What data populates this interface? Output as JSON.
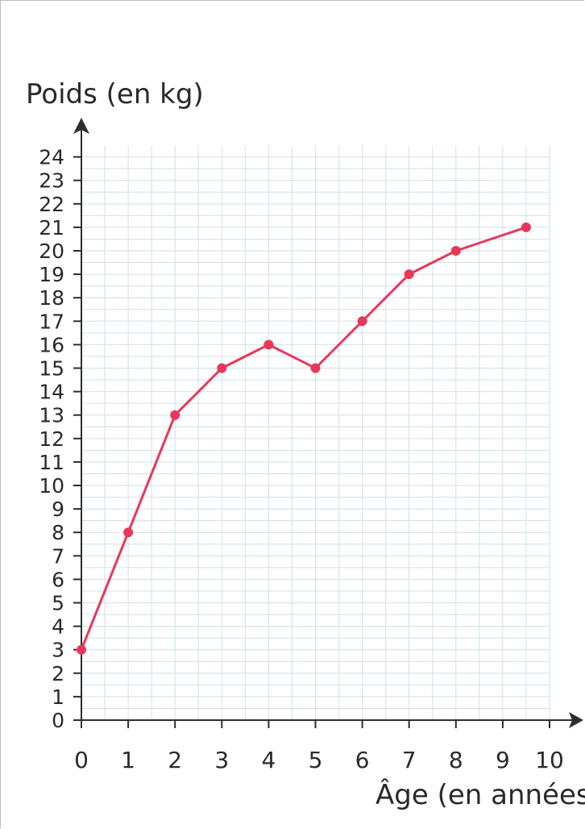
{
  "chart_data": {
    "type": "line",
    "xlabel": "Âge (en années)",
    "ylabel": "Poids (en kg)",
    "x_ticks": [
      "0",
      "1",
      "2",
      "3",
      "4",
      "5",
      "6",
      "7",
      "8",
      "9",
      "10"
    ],
    "y_ticks": [
      "0",
      "1",
      "2",
      "3",
      "4",
      "5",
      "6",
      "7",
      "8",
      "9",
      "10",
      "11",
      "12",
      "13",
      "14",
      "15",
      "16",
      "17",
      "18",
      "19",
      "20",
      "21",
      "22",
      "23",
      "24"
    ],
    "xlim": [
      0,
      10
    ],
    "ylim": [
      0,
      24
    ],
    "grid": true,
    "x": [
      0,
      1,
      2,
      3,
      4,
      5,
      6,
      7,
      8,
      9.5
    ],
    "y": [
      3,
      8,
      13,
      15,
      16,
      15,
      17,
      19,
      20,
      21
    ],
    "colors": {
      "line": "#e8385a",
      "grid": "#cfe0ea",
      "axis": "#2d2d2d",
      "text": "#2a2a2a"
    }
  }
}
